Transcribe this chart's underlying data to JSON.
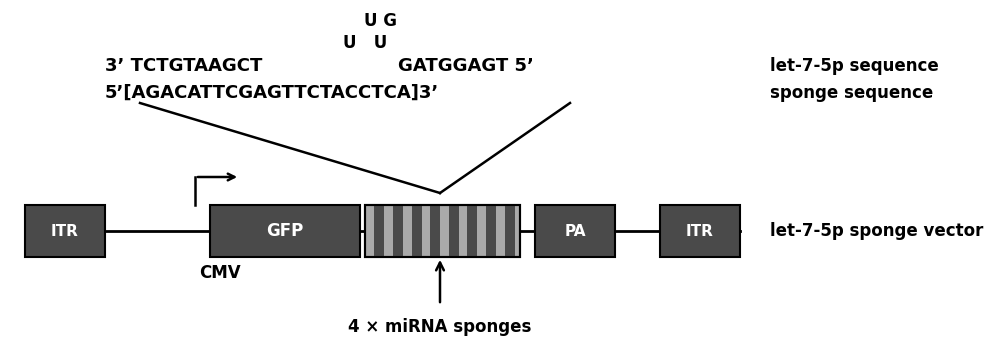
{
  "bg_color": "#ffffff",
  "dark_gray": "#4a4a4a",
  "sponge_bg": "#888888",
  "text_color": "#000000",
  "label_right1": "let-7-5p sequence",
  "label_right2": "sponge sequence",
  "label_right3": "let-7-5p sponge vector",
  "itr_label": "ITR",
  "gfp_label": "GFP",
  "pa_label": "PA",
  "cmv_label": "CMV",
  "mirna_label": "4 × miRNA sponges",
  "figsize": [
    10.0,
    3.51
  ],
  "dpi": 100
}
